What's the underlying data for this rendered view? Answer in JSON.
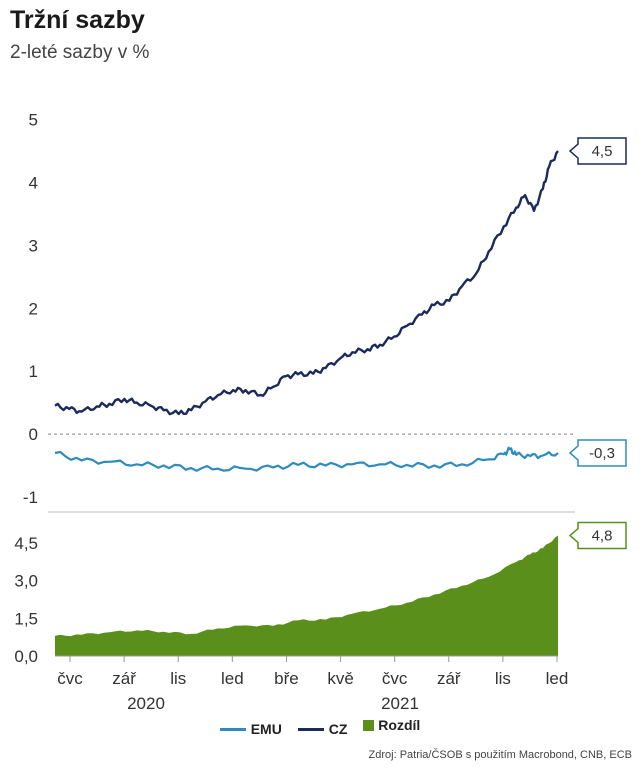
{
  "header": {
    "title": "Tržní sazby",
    "subtitle": "2-leté sazby v %"
  },
  "source": "Zdroj: Patria/ČSOB s použitím Macrobond, CNB, ECB",
  "legend": [
    {
      "label": "EMU",
      "color": "#2e8bc0",
      "kind": "line"
    },
    {
      "label": "CZ",
      "color": "#1b2a5c",
      "kind": "line"
    },
    {
      "label": "Rozdíl",
      "color": "#5a8f1c",
      "kind": "box"
    }
  ],
  "chart_data": [
    {
      "type": "line",
      "x_ticks": [
        "čvc",
        "zář",
        "lis",
        "led",
        "bře",
        "kvě",
        "čvc",
        "zář",
        "lis",
        "led"
      ],
      "year_labels": [
        "2020",
        "2021"
      ],
      "y_ticks": [
        "5",
        "4",
        "3",
        "2",
        "1",
        "0",
        "-1"
      ],
      "ylim": [
        -1.0,
        5.2
      ],
      "x_range": [
        "2020-06-15",
        "2022-01-01"
      ],
      "zero_line": "dashed",
      "series": [
        {
          "name": "CZ",
          "color": "#1b2a5c",
          "end_label": "4,5",
          "points": [
            [
              "2020-06-15",
              0.45
            ],
            [
              "2020-07-01",
              0.4
            ],
            [
              "2020-07-15",
              0.36
            ],
            [
              "2020-08-01",
              0.44
            ],
            [
              "2020-08-15",
              0.48
            ],
            [
              "2020-09-01",
              0.56
            ],
            [
              "2020-09-15",
              0.5
            ],
            [
              "2020-10-01",
              0.45
            ],
            [
              "2020-10-15",
              0.38
            ],
            [
              "2020-11-01",
              0.32
            ],
            [
              "2020-11-15",
              0.38
            ],
            [
              "2020-12-01",
              0.52
            ],
            [
              "2020-12-15",
              0.62
            ],
            [
              "2021-01-01",
              0.7
            ],
            [
              "2021-01-15",
              0.7
            ],
            [
              "2021-02-01",
              0.62
            ],
            [
              "2021-02-15",
              0.75
            ],
            [
              "2021-03-01",
              0.92
            ],
            [
              "2021-03-15",
              0.95
            ],
            [
              "2021-04-01",
              0.96
            ],
            [
              "2021-04-15",
              1.05
            ],
            [
              "2021-05-01",
              1.2
            ],
            [
              "2021-05-15",
              1.3
            ],
            [
              "2021-06-01",
              1.35
            ],
            [
              "2021-06-15",
              1.42
            ],
            [
              "2021-07-01",
              1.55
            ],
            [
              "2021-07-15",
              1.72
            ],
            [
              "2021-08-01",
              1.9
            ],
            [
              "2021-08-15",
              2.05
            ],
            [
              "2021-09-01",
              2.12
            ],
            [
              "2021-09-15",
              2.35
            ],
            [
              "2021-10-01",
              2.55
            ],
            [
              "2021-10-15",
              2.9
            ],
            [
              "2021-11-01",
              3.3
            ],
            [
              "2021-11-15",
              3.6
            ],
            [
              "2021-11-25",
              3.8
            ],
            [
              "2021-12-05",
              3.55
            ],
            [
              "2021-12-15",
              3.9
            ],
            [
              "2021-12-22",
              4.25
            ],
            [
              "2022-01-01",
              4.5
            ]
          ]
        },
        {
          "name": "EMU",
          "color": "#2e8bc0",
          "end_label": "-0,3",
          "points": [
            [
              "2020-06-15",
              -0.3
            ],
            [
              "2020-07-15",
              -0.42
            ],
            [
              "2020-08-15",
              -0.44
            ],
            [
              "2020-09-15",
              -0.48
            ],
            [
              "2020-10-15",
              -0.5
            ],
            [
              "2020-11-15",
              -0.54
            ],
            [
              "2020-12-15",
              -0.55
            ],
            [
              "2021-01-15",
              -0.55
            ],
            [
              "2021-02-15",
              -0.53
            ],
            [
              "2021-03-15",
              -0.49
            ],
            [
              "2021-04-15",
              -0.5
            ],
            [
              "2021-05-15",
              -0.48
            ],
            [
              "2021-06-15",
              -0.48
            ],
            [
              "2021-07-15",
              -0.49
            ],
            [
              "2021-08-15",
              -0.5
            ],
            [
              "2021-09-15",
              -0.48
            ],
            [
              "2021-10-15",
              -0.4
            ],
            [
              "2021-11-01",
              -0.32
            ],
            [
              "2021-11-08",
              -0.24
            ],
            [
              "2021-11-15",
              -0.33
            ],
            [
              "2021-12-01",
              -0.35
            ],
            [
              "2021-12-15",
              -0.34
            ],
            [
              "2022-01-01",
              -0.3
            ]
          ]
        }
      ]
    },
    {
      "type": "area",
      "y_ticks": [
        "4,5",
        "3,0",
        "1,5",
        "0,0"
      ],
      "ylim": [
        0,
        5.1
      ],
      "series": [
        {
          "name": "Rozdíl",
          "color": "#5a8f1c",
          "end_label": "4,8",
          "points": [
            [
              "2020-06-15",
              0.8
            ],
            [
              "2020-07-15",
              0.85
            ],
            [
              "2020-08-15",
              0.95
            ],
            [
              "2020-09-15",
              1.02
            ],
            [
              "2020-10-15",
              0.97
            ],
            [
              "2020-11-15",
              0.88
            ],
            [
              "2020-12-15",
              1.1
            ],
            [
              "2021-01-15",
              1.22
            ],
            [
              "2021-02-15",
              1.2
            ],
            [
              "2021-03-15",
              1.42
            ],
            [
              "2021-04-15",
              1.45
            ],
            [
              "2021-05-15",
              1.68
            ],
            [
              "2021-06-15",
              1.88
            ],
            [
              "2021-07-15",
              2.12
            ],
            [
              "2021-08-15",
              2.45
            ],
            [
              "2021-09-15",
              2.8
            ],
            [
              "2021-10-15",
              3.15
            ],
            [
              "2021-11-15",
              3.75
            ],
            [
              "2021-12-01",
              4.05
            ],
            [
              "2021-12-15",
              4.3
            ],
            [
              "2022-01-01",
              4.8
            ]
          ]
        }
      ]
    }
  ]
}
